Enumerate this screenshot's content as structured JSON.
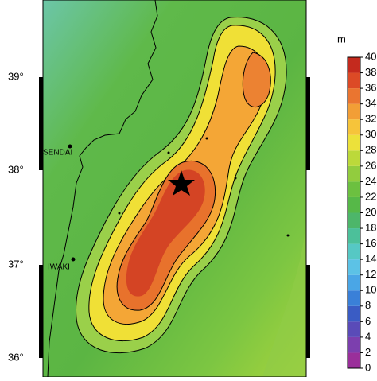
{
  "map": {
    "latitude_labels": [
      "39°",
      "38°",
      "37°",
      "36°"
    ],
    "places": [
      "SENDAI",
      "IWAKI"
    ]
  },
  "colorbar": {
    "unit": "m",
    "ticks": [
      0,
      2,
      4,
      6,
      8,
      10,
      12,
      14,
      16,
      18,
      20,
      22,
      24,
      26,
      28,
      30,
      32,
      34,
      36,
      38,
      40
    ],
    "colors": [
      "#b0207a",
      "#9a2f9a",
      "#7c3fae",
      "#5a4bb8",
      "#3a5cc4",
      "#3a80d8",
      "#4aa6e6",
      "#5cc2e6",
      "#56c8c4",
      "#4cc09a",
      "#4db66a",
      "#56b848",
      "#6cc040",
      "#92cc3e",
      "#bcd93a",
      "#ece13a",
      "#f6c43a",
      "#f29e36",
      "#ea7530",
      "#dc4a26",
      "#c42a1e"
    ]
  }
}
